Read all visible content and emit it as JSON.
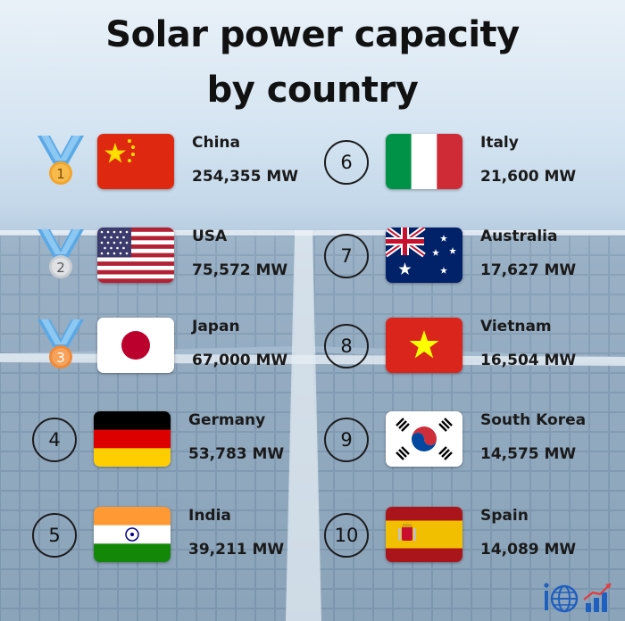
{
  "title": {
    "line1": "Solar power capacity",
    "line2": "by country"
  },
  "entries": [
    {
      "rank": "1",
      "country": "China",
      "capacity": "254,355 MW",
      "flag": "china-flag"
    },
    {
      "rank": "2",
      "country": "USA",
      "capacity": "75,572 MW",
      "flag": "usa-flag"
    },
    {
      "rank": "3",
      "country": "Japan",
      "capacity": "67,000 MW",
      "flag": "japan-flag"
    },
    {
      "rank": "4",
      "country": "Germany",
      "capacity": "53,783 MW",
      "flag": "germany-flag"
    },
    {
      "rank": "5",
      "country": "India",
      "capacity": "39,211 MW",
      "flag": "india-flag"
    },
    {
      "rank": "6",
      "country": "Italy",
      "capacity": "21,600 MW",
      "flag": "italy-flag"
    },
    {
      "rank": "7",
      "country": "Australia",
      "capacity": "17,627 MW",
      "flag": "australia-flag"
    },
    {
      "rank": "8",
      "country": "Vietnam",
      "capacity": "16,504 MW",
      "flag": "vietnam-flag"
    },
    {
      "rank": "9",
      "country": "South Korea",
      "capacity": "14,575 MW",
      "flag": "south-korea-flag"
    },
    {
      "rank": "10",
      "country": "Spain",
      "capacity": "14,089 MW",
      "flag": "spain-flag"
    }
  ],
  "medals": {
    "gold": "#f2a52c",
    "silver": "#c9ccd1",
    "bronze": "#ef8a3a",
    "ribbon": "#5aa9e6"
  },
  "logo": {
    "icons": [
      "info-globe-icon",
      "bar-chart-icon"
    ]
  }
}
